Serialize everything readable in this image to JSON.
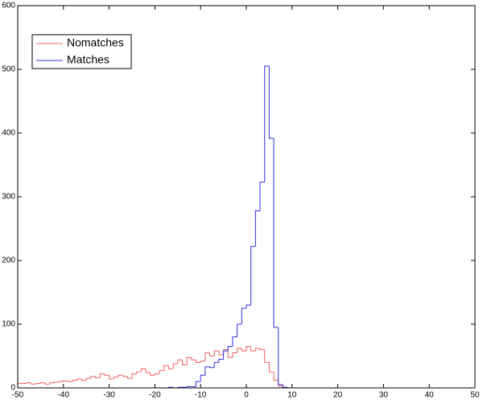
{
  "chart_data": {
    "type": "histogram",
    "bins": [
      -50,
      -49,
      -48,
      -47,
      -46,
      -45,
      -44,
      -43,
      -42,
      -41,
      -40,
      -39,
      -38,
      -37,
      -36,
      -35,
      -34,
      -33,
      -32,
      -31,
      -30,
      -29,
      -28,
      -27,
      -26,
      -25,
      -24,
      -23,
      -22,
      -21,
      -20,
      -19,
      -18,
      -17,
      -16,
      -15,
      -14,
      -13,
      -12,
      -11,
      -10,
      -9,
      -8,
      -7,
      -6,
      -5,
      -4,
      -3,
      -2,
      -1,
      0,
      1,
      2,
      3,
      4,
      5,
      6,
      7,
      8,
      9,
      10
    ],
    "series": [
      {
        "name": "Nomatches",
        "color": "#f06060",
        "values": [
          7,
          7,
          8,
          6,
          7,
          8,
          6,
          8,
          9,
          10,
          11,
          10,
          12,
          14,
          12,
          15,
          18,
          16,
          22,
          20,
          14,
          17,
          20,
          18,
          15,
          22,
          25,
          30,
          24,
          20,
          22,
          27,
          35,
          30,
          38,
          44,
          36,
          48,
          44,
          40,
          42,
          55,
          50,
          58,
          52,
          60,
          48,
          55,
          62,
          58,
          65,
          58,
          62,
          60,
          40,
          25,
          12,
          3,
          1,
          0
        ]
      },
      {
        "name": "Matches",
        "color": "#3030e0",
        "values": [
          0,
          0,
          0,
          0,
          0,
          0,
          0,
          0,
          0,
          0,
          0,
          0,
          0,
          0,
          0,
          0,
          0,
          0,
          0,
          0,
          0,
          0,
          0,
          0,
          0,
          0,
          0,
          0,
          0,
          0,
          0,
          0,
          0,
          1,
          0,
          1,
          1,
          2,
          2,
          10,
          20,
          33,
          32,
          40,
          45,
          58,
          65,
          80,
          100,
          125,
          130,
          222,
          278,
          323,
          505,
          392,
          95,
          5,
          1,
          0
        ]
      }
    ],
    "xlim": [
      -50,
      50
    ],
    "xticks": [
      -50,
      -40,
      -30,
      -20,
      -10,
      0,
      10,
      20,
      30,
      40,
      50
    ],
    "ylim": [
      0,
      600
    ],
    "yticks": [
      0,
      100,
      200,
      300,
      400,
      500,
      600
    ],
    "legend": "upper left"
  }
}
